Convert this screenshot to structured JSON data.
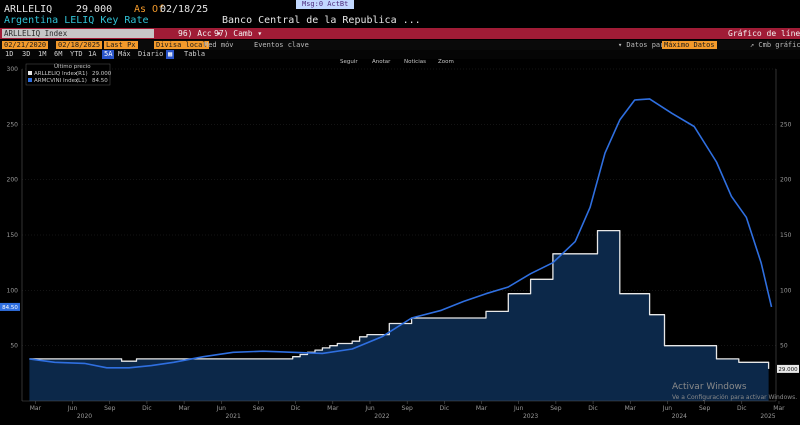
{
  "header": {
    "ticker": "ARLLELIQ",
    "last": "29.000",
    "asof_label": "As Of",
    "asof_date": "02/18/25",
    "magenta_tab": "Msg:0  ActBt",
    "security_name": "Argentina LELIQ Key Rate",
    "issuer": "Banco Central de la Republica ..."
  },
  "command_bar": {
    "ticker_box": "ARLLELIQ Index",
    "actions": "96) Acc ▾",
    "change": "97) Camb ▾",
    "title_right": "Gráfico de líneas"
  },
  "controls": {
    "start_date": "02/21/2020",
    "end_date": "02/18/2025",
    "field": "Last Px",
    "currency": "Divisa local",
    "moving_avg": "Med móv",
    "key_events": "Eventos clave"
  },
  "range_buttons": [
    "1D",
    "3D",
    "1M",
    "6M",
    "YTD",
    "1A",
    "5A",
    "Máx"
  ],
  "selected_range": "5A",
  "frequency": "Diario ▾",
  "table_label": "Tabla",
  "data_from_label": "▾ Datos partir",
  "data_from_value": "Máximo Datos",
  "edit_chart_label": "↗ Cmb gráfico",
  "legend": {
    "title": "Último precio",
    "items": [
      {
        "label": "ARLLELIQ Index",
        "code": "(R1)",
        "value": "29.000",
        "color": "#e8e8e8"
      },
      {
        "label": "ARMCVINI Index",
        "code": "(L1)",
        "value": "84.50",
        "color": "#2f6fe0"
      }
    ]
  },
  "chart_toolbar": [
    "Seguir",
    "Anotar",
    "Noticias",
    "Zoom"
  ],
  "watermark": {
    "line1": "Activar Windows",
    "line2": "Ve a Configuración para activar Windows."
  },
  "chart_data": {
    "type": "line",
    "title": "",
    "xlabel": "",
    "ylabel": "",
    "x_year_labels": [
      "2020",
      "2021",
      "2022",
      "2023",
      "2024",
      "2025"
    ],
    "x_month_labels": [
      "Mar",
      "Jun",
      "Sep",
      "Dic",
      "Mar",
      "Jun",
      "Sep",
      "Dic",
      "Mar",
      "Jun",
      "Sep",
      "Dic",
      "Mar",
      "Jun",
      "Sep",
      "Dic",
      "Mar",
      "Jun",
      "Sep",
      "Dic",
      "Mar"
    ],
    "ylim_left": [
      0,
      300
    ],
    "yticks_left": [
      50,
      100,
      150,
      200,
      250,
      300
    ],
    "ylim_right": [
      0,
      300
    ],
    "yticks_right": [
      50,
      100,
      150,
      200,
      250
    ],
    "last_left_tag": "84.50",
    "last_right_tag": "29.000",
    "series": [
      {
        "name": "ARLLELIQ Index",
        "color": "#e8e8e8",
        "fill": "#0d2a4d",
        "step": true,
        "x": [
          2020.13,
          2020.7,
          2020.75,
          2020.85,
          2021.85,
          2021.9,
          2021.95,
          2022.0,
          2022.05,
          2022.1,
          2022.15,
          2022.2,
          2022.3,
          2022.35,
          2022.4,
          2022.55,
          2022.7,
          2022.85,
          2022.95,
          2023.05,
          2023.2,
          2023.35,
          2023.5,
          2023.65,
          2023.95,
          2024.1,
          2024.2,
          2024.3,
          2024.4,
          2024.75,
          2024.9,
          2025.1
        ],
        "values": [
          38,
          38,
          36,
          38,
          38,
          40,
          42,
          44,
          46,
          48,
          50,
          52,
          54,
          58,
          60,
          70,
          75,
          75,
          75,
          75,
          81,
          97,
          110,
          133,
          154,
          97,
          97,
          78,
          50,
          38,
          35,
          29
        ]
      },
      {
        "name": "ARMCVINI Index",
        "color": "#2f6fe0",
        "step": false,
        "x": [
          2020.13,
          2020.3,
          2020.5,
          2020.65,
          2020.8,
          2020.95,
          2021.1,
          2021.3,
          2021.5,
          2021.7,
          2021.9,
          2022.1,
          2022.3,
          2022.5,
          2022.7,
          2022.9,
          2023.05,
          2023.2,
          2023.35,
          2023.5,
          2023.65,
          2023.8,
          2023.9,
          2024.0,
          2024.1,
          2024.2,
          2024.3,
          2024.45,
          2024.6,
          2024.75,
          2024.85,
          2024.95,
          2025.05,
          2025.12
        ],
        "values": [
          38,
          35,
          34,
          30,
          30,
          32,
          35,
          40,
          44,
          45,
          44,
          43,
          47,
          58,
          75,
          82,
          90,
          97,
          103,
          115,
          125,
          144,
          175,
          224,
          254,
          272,
          273,
          260,
          248,
          216,
          185,
          166,
          125,
          85
        ]
      }
    ]
  }
}
